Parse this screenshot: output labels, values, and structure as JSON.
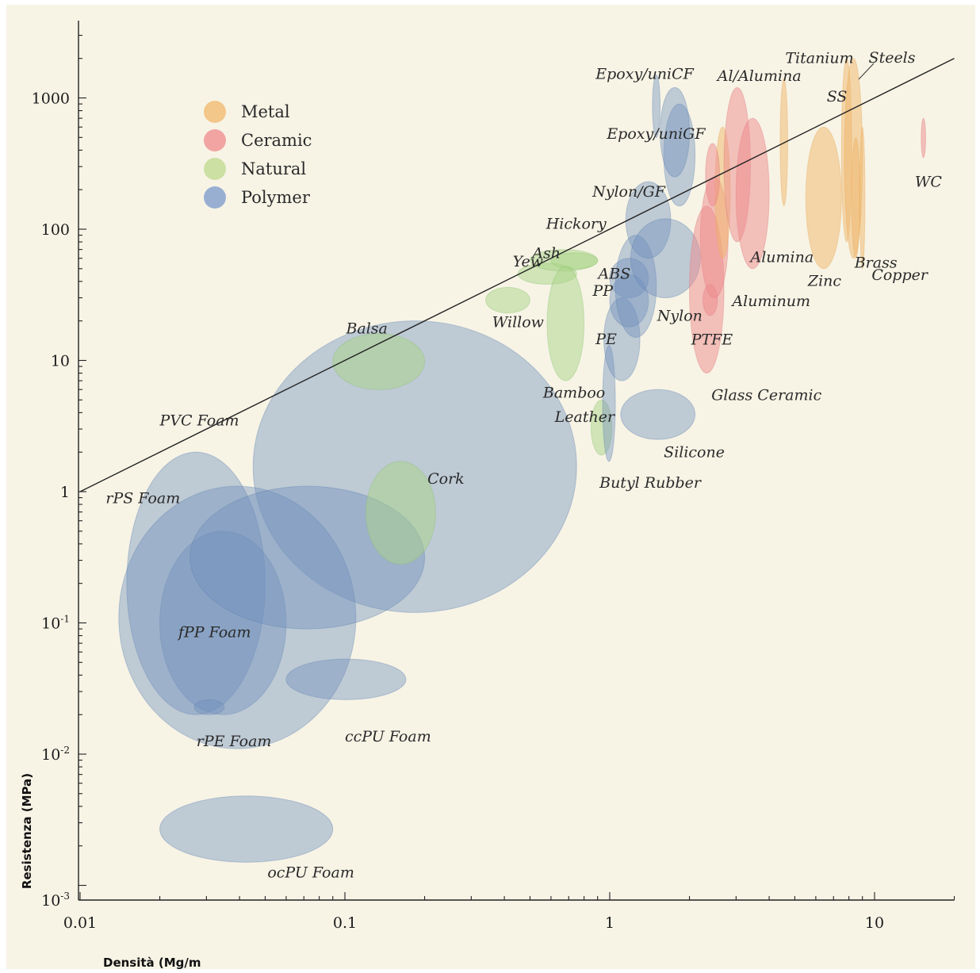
{
  "chart_data": {
    "type": "scatter",
    "xlabel": "Densità (Mg/m",
    "ylabel": "Resistenza (MPa)",
    "xscale": "log",
    "yscale": "log",
    "xlim": [
      0.01,
      20
    ],
    "ylim": [
      0.0008,
      3000
    ],
    "x_ticks": [
      "0.01",
      "0.1",
      "1",
      "10"
    ],
    "y_ticks": [
      {
        "mant": "10",
        "exp": "-3"
      },
      {
        "mant": "10",
        "exp": "-2"
      },
      {
        "mant": "10",
        "exp": "-1"
      },
      {
        "mant": "1",
        "exp": ""
      },
      {
        "mant": "10",
        "exp": ""
      },
      {
        "mant": "100",
        "exp": ""
      },
      {
        "mant": "1000",
        "exp": ""
      }
    ],
    "grid": false,
    "legend_position": "top-left",
    "legend": [
      {
        "name": "Metal",
        "color": "#f2c17e"
      },
      {
        "name": "Ceramic",
        "color": "#ef9b9a"
      },
      {
        "name": "Natural",
        "color": "#c6de9b"
      },
      {
        "name": "Polymer",
        "color": "#8ea7cf"
      }
    ],
    "reference_line": {
      "x": [
        0.01,
        20
      ],
      "y": [
        1,
        2000
      ]
    },
    "regions": [
      {
        "name": "PVC Foam",
        "class": "Polymer",
        "x": [
          0.045,
          0.75
        ],
        "y": [
          0.12,
          20
        ]
      },
      {
        "name": "rPS Foam",
        "class": "Polymer",
        "x": [
          0.015,
          0.05
        ],
        "y": [
          0.02,
          2
        ]
      },
      {
        "name": "fPP Foam",
        "class": "Polymer",
        "x": [
          0.02,
          0.06
        ],
        "y": [
          0.02,
          0.5
        ]
      },
      {
        "name": "rPE Foam",
        "class": "Polymer",
        "x": [
          0.014,
          0.11
        ],
        "y": [
          0.011,
          1.1
        ]
      },
      {
        "name": "",
        "class": "Polymer",
        "x": [
          0.026,
          0.2
        ],
        "y": [
          0.09,
          1.1
        ]
      },
      {
        "name": "",
        "class": "Polymer",
        "x": [
          0.027,
          0.035
        ],
        "y": [
          0.02,
          0.026
        ]
      },
      {
        "name": "ccPU Foam",
        "class": "Polymer",
        "x": [
          0.06,
          0.17
        ],
        "y": [
          0.026,
          0.053
        ]
      },
      {
        "name": "ocPU Foam",
        "class": "Polymer",
        "x": [
          0.02,
          0.09
        ],
        "y": [
          0.0015,
          0.0048
        ]
      },
      {
        "name": "Balsa",
        "class": "Natural",
        "x": [
          0.09,
          0.2
        ],
        "y": [
          6,
          16
        ]
      },
      {
        "name": "Cork",
        "class": "Natural",
        "x": [
          0.12,
          0.22
        ],
        "y": [
          0.28,
          1.7
        ]
      },
      {
        "name": "Willow",
        "class": "Natural",
        "x": [
          0.34,
          0.5
        ],
        "y": [
          23,
          36
        ]
      },
      {
        "name": "Yew",
        "class": "Natural",
        "x": [
          0.45,
          0.75
        ],
        "y": [
          38,
          55
        ]
      },
      {
        "name": "Ash",
        "class": "Natural",
        "x": [
          0.5,
          0.9
        ],
        "y": [
          48,
          70
        ]
      },
      {
        "name": "Hickory",
        "class": "Natural",
        "x": [
          0.6,
          0.9
        ],
        "y": [
          50,
          66
        ]
      },
      {
        "name": "Bamboo",
        "class": "Natural",
        "x": [
          0.58,
          0.8
        ],
        "y": [
          7,
          52
        ]
      },
      {
        "name": "Leather",
        "class": "Natural",
        "x": [
          0.85,
          1.02
        ],
        "y": [
          1.9,
          5
        ]
      },
      {
        "name": "Silicone",
        "class": "Polymer",
        "x": [
          1.1,
          2.1
        ],
        "y": [
          2.5,
          6
        ]
      },
      {
        "name": "Butyl Rubber",
        "class": "Polymer",
        "x": [
          0.94,
          1.05
        ],
        "y": [
          1.7,
          13
        ]
      },
      {
        "name": "PE",
        "class": "Polymer",
        "x": [
          0.95,
          1.3
        ],
        "y": [
          7,
          30
        ]
      },
      {
        "name": "PP",
        "class": "Polymer",
        "x": [
          1.0,
          1.4
        ],
        "y": [
          18,
          45
        ]
      },
      {
        "name": "ABS",
        "class": "Polymer",
        "x": [
          1.0,
          1.4
        ],
        "y": [
          30,
          60
        ]
      },
      {
        "name": "Nylon",
        "class": "Polymer",
        "x": [
          1.05,
          1.5
        ],
        "y": [
          15,
          90
        ]
      },
      {
        "name": "Nylon/GF",
        "class": "Polymer",
        "x": [
          1.15,
          1.7
        ],
        "y": [
          60,
          230
        ]
      },
      {
        "name": "",
        "class": "Polymer",
        "x": [
          1.2,
          2.2
        ],
        "y": [
          30,
          120
        ]
      },
      {
        "name": "Epoxy/uniGF",
        "class": "Polymer",
        "x": [
          1.6,
          2.1
        ],
        "y": [
          150,
          900
        ]
      },
      {
        "name": "Epoxy/uniCF",
        "class": "Polymer",
        "x": [
          1.45,
          1.55
        ],
        "y": [
          500,
          1500
        ]
      },
      {
        "name": "",
        "class": "Polymer",
        "x": [
          1.55,
          2.0
        ],
        "y": [
          250,
          1200
        ]
      },
      {
        "name": "PTFE",
        "class": "Ceramic",
        "x": [
          2.0,
          2.7
        ],
        "y": [
          8,
          150
        ]
      },
      {
        "name": "",
        "class": "Ceramic",
        "x": [
          2.25,
          2.55
        ],
        "y": [
          22,
          38
        ]
      },
      {
        "name": "Glass Ceramic",
        "class": "Ceramic",
        "x": [
          2.2,
          2.8
        ],
        "y": [
          30,
          250
        ]
      },
      {
        "name": "Aluminum",
        "class": "Metal",
        "x": [
          2.5,
          2.85
        ],
        "y": [
          60,
          600
        ]
      },
      {
        "name": "Al/Alumina",
        "class": "Ceramic",
        "x": [
          2.7,
          3.4
        ],
        "y": [
          80,
          1200
        ]
      },
      {
        "name": "Alumina",
        "class": "Ceramic",
        "x": [
          3.0,
          4.0
        ],
        "y": [
          50,
          700
        ]
      },
      {
        "name": "",
        "class": "Ceramic",
        "x": [
          2.3,
          2.6
        ],
        "y": [
          150,
          450
        ]
      },
      {
        "name": "Titanium",
        "class": "Metal",
        "x": [
          4.4,
          4.7
        ],
        "y": [
          150,
          1400
        ]
      },
      {
        "name": "Zinc",
        "class": "Metal",
        "x": [
          5.5,
          7.5
        ],
        "y": [
          50,
          600
        ]
      },
      {
        "name": "SS",
        "class": "Metal",
        "x": [
          7.5,
          8.2
        ],
        "y": [
          80,
          2000
        ]
      },
      {
        "name": "Steels",
        "class": "Metal",
        "x": [
          7.7,
          9.0
        ],
        "y": [
          60,
          2000
        ]
      },
      {
        "name": "Brass",
        "class": "Metal",
        "x": [
          8.2,
          8.8
        ],
        "y": [
          60,
          500
        ]
      },
      {
        "name": "Copper",
        "class": "Metal",
        "x": [
          8.8,
          9.2
        ],
        "y": [
          50,
          600
        ]
      },
      {
        "name": "WC",
        "class": "Ceramic",
        "x": [
          15,
          15.6
        ],
        "y": [
          350,
          700
        ]
      }
    ],
    "labels": [
      {
        "text": "PVC Foam",
        "x": 0.02,
        "y": 3.2
      },
      {
        "text": "rPS Foam",
        "x": 0.0125,
        "y": 0.82
      },
      {
        "text": "fPP Foam",
        "x": 0.0235,
        "y": 0.078
      },
      {
        "text": "rPE Foam",
        "x": 0.0275,
        "y": 0.0115
      },
      {
        "text": "ccPU Foam",
        "x": 0.1,
        "y": 0.0125
      },
      {
        "text": "ocPU Foam",
        "x": 0.051,
        "y": 0.00115
      },
      {
        "text": "Balsa",
        "x": 0.101,
        "y": 16
      },
      {
        "text": "Cork",
        "x": 0.205,
        "y": 1.15
      },
      {
        "text": "Willow",
        "x": 0.36,
        "y": 18
      },
      {
        "text": "Yew",
        "x": 0.43,
        "y": 52
      },
      {
        "text": "Ash",
        "x": 0.51,
        "y": 60
      },
      {
        "text": "Hickory",
        "x": 0.575,
        "y": 101
      },
      {
        "text": "Bamboo",
        "x": 0.56,
        "y": 5.2
      },
      {
        "text": "Leather",
        "x": 0.62,
        "y": 3.4
      },
      {
        "text": "Butyl Rubber",
        "x": 0.915,
        "y": 1.07
      },
      {
        "text": "Silicone",
        "x": 1.6,
        "y": 1.83
      },
      {
        "text": "PE",
        "x": 0.885,
        "y": 13.3
      },
      {
        "text": "PP",
        "x": 0.862,
        "y": 31
      },
      {
        "text": "ABS",
        "x": 0.905,
        "y": 42
      },
      {
        "text": "Nylon",
        "x": 1.51,
        "y": 20
      },
      {
        "text": "Nylon/GF",
        "x": 0.86,
        "y": 177
      },
      {
        "text": "Epoxy/uniGF",
        "x": 0.975,
        "y": 490
      },
      {
        "text": "Epoxy/uniCF",
        "x": 0.885,
        "y": 1400
      },
      {
        "text": "PTFE",
        "x": 2.03,
        "y": 13.2
      },
      {
        "text": "Glass Ceramic",
        "x": 2.42,
        "y": 5
      },
      {
        "text": "Aluminum",
        "x": 2.9,
        "y": 26
      },
      {
        "text": "Al/Alumina",
        "x": 2.55,
        "y": 1350
      },
      {
        "text": "Alumina",
        "x": 3.4,
        "y": 56
      },
      {
        "text": "Titanium",
        "x": 4.6,
        "y": 1850
      },
      {
        "text": "Zinc",
        "x": 5.6,
        "y": 37
      },
      {
        "text": "SS",
        "x": 6.6,
        "y": 940
      },
      {
        "text": "Steels",
        "x": 9.5,
        "y": 1860
      },
      {
        "text": "Brass",
        "x": 8.4,
        "y": 51
      },
      {
        "text": "Copper",
        "x": 9.75,
        "y": 41
      },
      {
        "text": "WC",
        "x": 14.2,
        "y": 210
      }
    ]
  }
}
